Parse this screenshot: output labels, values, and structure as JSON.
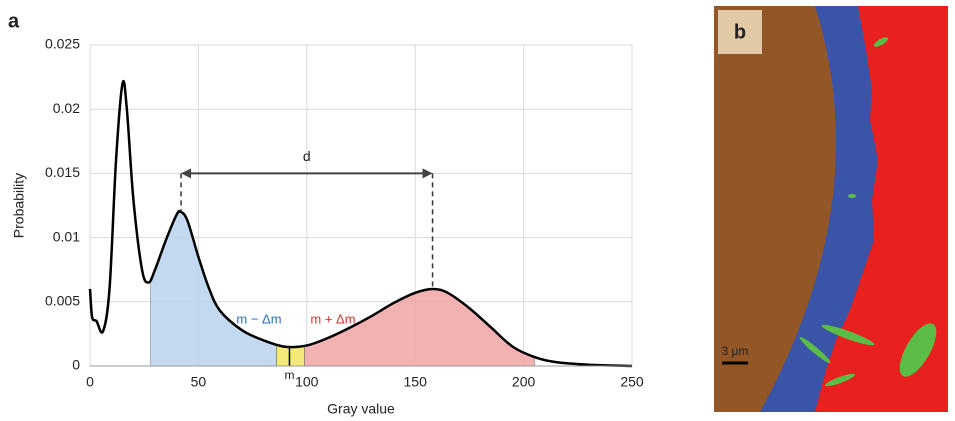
{
  "panel_labels": [
    "a",
    "b"
  ],
  "scale_bar": "3 μm",
  "chart_data": {
    "type": "line",
    "x_label": "Gray value",
    "y_label": "Probability",
    "x": [
      0,
      1,
      3,
      6,
      9,
      12,
      15,
      17,
      20,
      24,
      27,
      30,
      35,
      40,
      42,
      45,
      50,
      55,
      60,
      70,
      80,
      90,
      100,
      110,
      120,
      130,
      140,
      150,
      158,
      165,
      175,
      185,
      195,
      205,
      215,
      230,
      250
    ],
    "series": [
      {
        "color": "#000000",
        "values": [
          0.006,
          0.0038,
          0.0035,
          0.0027,
          0.006,
          0.016,
          0.022,
          0.02,
          0.013,
          0.0075,
          0.0065,
          0.0075,
          0.0098,
          0.0118,
          0.012,
          0.0113,
          0.0085,
          0.006,
          0.0043,
          0.0028,
          0.002,
          0.0015,
          0.0016,
          0.0022,
          0.003,
          0.0039,
          0.0049,
          0.0057,
          0.006,
          0.0057,
          0.0045,
          0.003,
          0.0015,
          0.0007,
          0.0003,
          0.0001,
          0
        ]
      }
    ],
    "xlim": [
      0,
      250
    ],
    "xticks": [
      0,
      50,
      100,
      150,
      200,
      250
    ],
    "ylim": [
      0,
      0.025
    ],
    "yticks": [
      0,
      0.005,
      0.01,
      0.015,
      0.02,
      0.025
    ],
    "grid": true,
    "shaded_regions": [
      {
        "from": 28,
        "to": 86,
        "color": "#bcd5ee"
      },
      {
        "from": 86,
        "to": 99,
        "color": "#f2e76a"
      },
      {
        "from": 99,
        "to": 205,
        "color": "#f2aaaa"
      }
    ],
    "m_x": 92,
    "d_span": {
      "x": [
        42,
        158
      ],
      "y": 0.015
    },
    "annotations": {
      "d": "d",
      "lower": "m − Δm",
      "upper": "m + Δm",
      "m": "m"
    },
    "annotation_colors": {
      "lower": "#2a6fc4",
      "upper": "#e3302b"
    }
  }
}
